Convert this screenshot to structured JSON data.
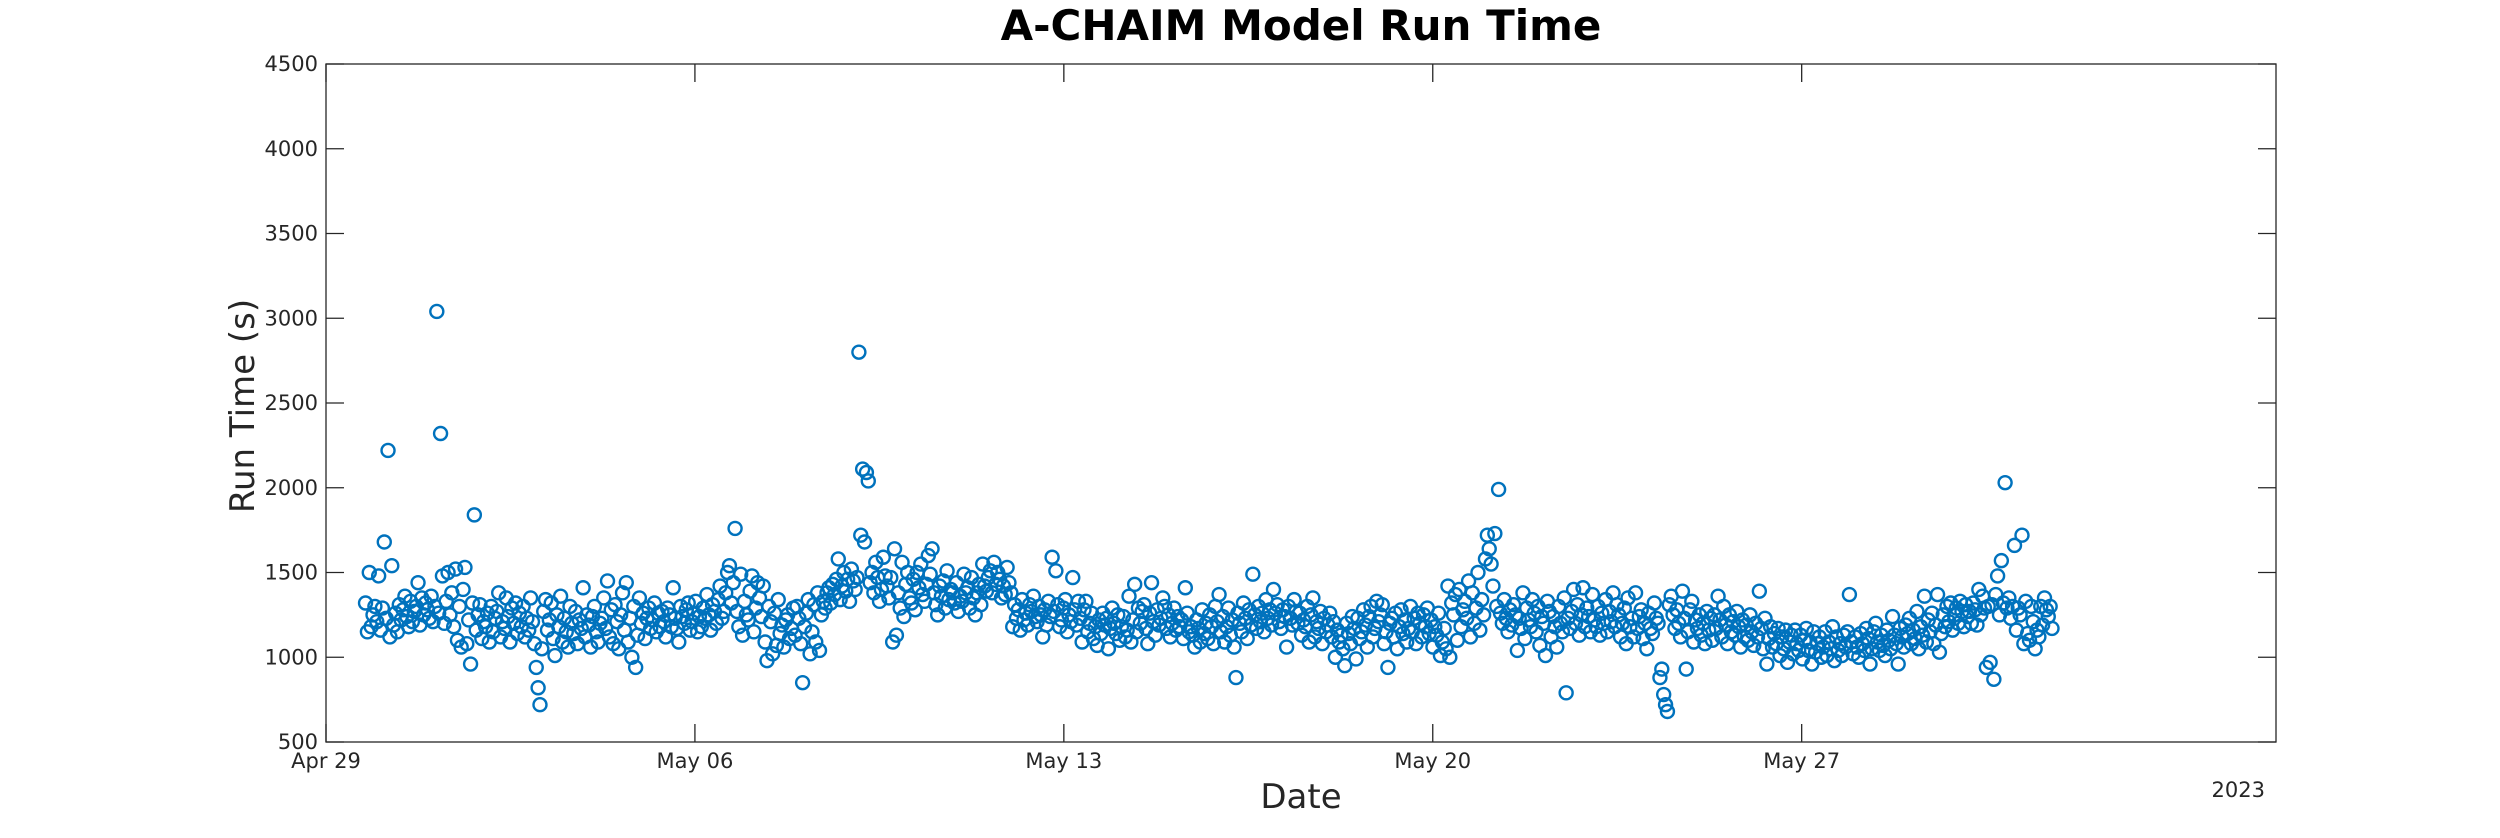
{
  "chart_data": {
    "type": "scatter",
    "title": "A-CHAIM Model Run Time",
    "xlabel": "Date",
    "ylabel": "Run Time (s)",
    "x_axis_type": "date",
    "x_year_label": "2023",
    "xlim": [
      "2023-04-29",
      "2023-06-05"
    ],
    "ylim": [
      500,
      4500
    ],
    "x_ticks": [
      {
        "date": "2023-04-29",
        "label": "Apr 29"
      },
      {
        "date": "2023-05-06",
        "label": "May 06"
      },
      {
        "date": "2023-05-13",
        "label": "May 13"
      },
      {
        "date": "2023-05-20",
        "label": "May 20"
      },
      {
        "date": "2023-05-27",
        "label": "May 27"
      }
    ],
    "y_ticks": [
      500,
      1000,
      1500,
      2000,
      2500,
      3000,
      3500,
      4000,
      4500
    ],
    "grid": false,
    "marker": "open-circle",
    "marker_color": "#0072BD",
    "series": [
      {
        "x_start": "2023-04-29T18:00",
        "x_end": "2023-05-31T18:00",
        "sampling": "uniform",
        "values": [
          1320,
          1150,
          1500,
          1180,
          1250,
          1300,
          1210,
          1480,
          1160,
          1290,
          1680,
          1230,
          2220,
          1120,
          1540,
          1190,
          1260,
          1150,
          1310,
          1220,
          1280,
          1360,
          1240,
          1180,
          1330,
          1210,
          1270,
          1300,
          1440,
          1190,
          1350,
          1250,
          1320,
          1280,
          1230,
          1360,
          1210,
          1300,
          3040,
          1260,
          2320,
          1480,
          1200,
          1330,
          1500,
          1250,
          1380,
          1180,
          1520,
          1100,
          1300,
          1060,
          1400,
          1530,
          1080,
          1220,
          960,
          1320,
          1840,
          1160,
          1250,
          1310,
          1110,
          1210,
          1180,
          1260,
          1090,
          1300,
          1150,
          1230,
          1270,
          1380,
          1120,
          1210,
          1170,
          1350,
          1240,
          1090,
          1290,
          1200,
          1320,
          1140,
          1260,
          1180,
          1300,
          1120,
          1230,
          1160,
          1350,
          1210,
          1080,
          940,
          820,
          720,
          1050,
          1270,
          1340,
          1160,
          1220,
          1320,
          1110,
          1010,
          1250,
          1180,
          1360,
          1090,
          1230,
          1150,
          1060,
          1300,
          1200,
          1140,
          1270,
          1080,
          1220,
          1170,
          1410,
          1120,
          1250,
          1190,
          1060,
          1240,
          1300,
          1150,
          1090,
          1200,
          1230,
          1350,
          1170,
          1450,
          1120,
          1280,
          1080,
          1310,
          1210,
          1050,
          1250,
          1380,
          1160,
          1440,
          1090,
          1230,
          1000,
          1300,
          940,
          1130,
          1350,
          1200,
          1260,
          1110,
          1230,
          1290,
          1170,
          1220,
          1320,
          1150,
          1260,
          1180,
          1270,
          1210,
          1120,
          1290,
          1250,
          1180,
          1410,
          1230,
          1170,
          1090,
          1300,
          1240,
          1200,
          1280,
          1320,
          1160,
          1210,
          1260,
          1330,
          1150,
          1240,
          1180,
          1290,
          1230,
          1370,
          1250,
          1160,
          1310,
          1270,
          1200,
          1340,
          1420,
          1230,
          1270,
          1380,
          1500,
          1540,
          1320,
          1440,
          1760,
          1270,
          1180,
          1490,
          1130,
          1330,
          1250,
          1220,
          1390,
          1480,
          1150,
          1290,
          1440,
          1350,
          1240,
          1420,
          1090,
          980,
          1300,
          1210,
          1020,
          1260,
          1070,
          1340,
          1140,
          1190,
          1060,
          1220,
          1250,
          1110,
          1170,
          1290,
          1130,
          1300,
          1230,
          1080,
          850,
          1180,
          1260,
          1340,
          1020,
          1150,
          1310,
          1090,
          1380,
          1040,
          1250,
          1330,
          1290,
          1380,
          1410,
          1320,
          1430,
          1370,
          1460,
          1580,
          1340,
          1420,
          1500,
          1390,
          1460,
          1330,
          1520,
          1450,
          1400,
          1470,
          2800,
          1720,
          2110,
          1680,
          2090,
          2040,
          1440,
          1500,
          1380,
          1560,
          1470,
          1330,
          1400,
          1590,
          1480,
          1420,
          1350,
          1470,
          1090,
          1640,
          1130,
          1380,
          1290,
          1560,
          1240,
          1430,
          1500,
          1350,
          1320,
          1460,
          1280,
          1500,
          1410,
          1550,
          1370,
          1330,
          1430,
          1600,
          1490,
          1640,
          1380,
          1310,
          1250,
          1420,
          1360,
          1450,
          1290,
          1510,
          1340,
          1400,
          1380,
          1320,
          1440,
          1270,
          1360,
          1330,
          1490,
          1380,
          1410,
          1290,
          1470,
          1350,
          1250,
          1380,
          1430,
          1310,
          1550,
          1420,
          1390,
          1470,
          1510,
          1380,
          1560,
          1430,
          1500,
          1460,
          1350,
          1420,
          1370,
          1530,
          1440,
          1380,
          1180,
          1310,
          1230,
          1280,
          1160,
          1340,
          1220,
          1260,
          1190,
          1310,
          1270,
          1360,
          1240,
          1210,
          1300,
          1250,
          1120,
          1280,
          1190,
          1330,
          1240,
          1590,
          1270,
          1510,
          1310,
          1180,
          1220,
          1290,
          1340,
          1150,
          1250,
          1210,
          1470,
          1280,
          1190,
          1330,
          1230,
          1090,
          1280,
          1330,
          1150,
          1200,
          1260,
          1110,
          1180,
          1070,
          1220,
          1140,
          1260,
          1190,
          1230,
          1050,
          1170,
          1290,
          1200,
          1140,
          1250,
          1100,
          1180,
          1240,
          1120,
          1160,
          1360,
          1090,
          1220,
          1430,
          1150,
          1290,
          1200,
          1270,
          1310,
          1170,
          1080,
          1260,
          1440,
          1210,
          1130,
          1280,
          1190,
          1230,
          1350,
          1300,
          1170,
          1250,
          1120,
          1200,
          1290,
          1160,
          1240,
          1180,
          1220,
          1110,
          1410,
          1260,
          1150,
          1180,
          1130,
          1060,
          1220,
          1170,
          1090,
          1280,
          1140,
          1200,
          1110,
          1250,
          1180,
          1080,
          1300,
          1210,
          1370,
          1150,
          1240,
          1090,
          1180,
          1290,
          1130,
          1220,
          1060,
          880,
          1260,
          1200,
          1150,
          1320,
          1230,
          1110,
          1280,
          1190,
          1490,
          1250,
          1170,
          1300,
          1210,
          1260,
          1150,
          1340,
          1230,
          1280,
          1190,
          1400,
          1260,
          1310,
          1210,
          1170,
          1280,
          1240,
          1060,
          1300,
          1230,
          1190,
          1340,
          1270,
          1200,
          1260,
          1130,
          1220,
          1180,
          1300,
          1090,
          1250,
          1350,
          1120,
          1210,
          1170,
          1270,
          1080,
          1230,
          1150,
          1190,
          1260,
          1120,
          1210,
          1000,
          1160,
          1090,
          1130,
          1050,
          950,
          1200,
          1140,
          1080,
          1240,
          1170,
          990,
          1230,
          1110,
          1150,
          1280,
          1190,
          1060,
          1240,
          1300,
          1120,
          1170,
          1330,
          1210,
          1250,
          1310,
          1080,
          1150,
          940,
          1200,
          1230,
          1120,
          1260,
          1050,
          1180,
          1280,
          1140,
          1220,
          1090,
          1170,
          1300,
          1150,
          1230,
          1080,
          1260,
          1200,
          1120,
          1250,
          1180,
          1290,
          1140,
          1220,
          1060,
          1180,
          1130,
          1260,
          1010,
          1090,
          1170,
          1050,
          1420,
          1000,
          1320,
          1250,
          1370,
          1100,
          1400,
          1180,
          1280,
          1330,
          1230,
          1450,
          1120,
          1380,
          1200,
          1290,
          1500,
          1160,
          1340,
          1250,
          1580,
          1720,
          1640,
          1550,
          1420,
          1730,
          1300,
          1990,
          1260,
          1200,
          1340,
          1230,
          1150,
          1280,
          1190,
          1310,
          1250,
          1040,
          1230,
          1170,
          1380,
          1110,
          1290,
          1220,
          1180,
          1340,
          1260,
          1150,
          1300,
          1070,
          1240,
          1200,
          1010,
          1330,
          1270,
          1120,
          1240,
          1180,
          1060,
          1300,
          1200,
          1150,
          1350,
          790,
          1230,
          1170,
          1270,
          1400,
          1200,
          1310,
          1130,
          1250,
          1410,
          1180,
          1290,
          1240,
          1150,
          1370,
          1220,
          1180,
          1300,
          1130,
          1260,
          1200,
          1340,
          1150,
          1270,
          1210,
          1380,
          1180,
          1310,
          1250,
          1120,
          1200,
          1290,
          1080,
          1350,
          1180,
          1230,
          1120,
          1380,
          1170,
          1240,
          1280,
          1110,
          1200,
          1050,
          1260,
          1170,
          1140,
          1320,
          1230,
          1200,
          880,
          930,
          780,
          720,
          680,
          1310,
          1360,
          1250,
          1170,
          1280,
          1200,
          1120,
          1390,
          1230,
          930,
          1150,
          1280,
          1330,
          1090,
          1220,
          1170,
          1250,
          1130,
          1200,
          1080,
          1270,
          1160,
          1230,
          1100,
          1250,
          1170,
          1360,
          1220,
          1120,
          1300,
          1190,
          1080,
          1250,
          1150,
          1210,
          1130,
          1270,
          1180,
          1060,
          1220,
          1120,
          1190,
          1100,
          1250,
          1150,
          1070,
          1200,
          1120,
          1390,
          1170,
          1050,
          1230,
          960,
          1110,
          1180,
          1060,
          1140,
          1080,
          1170,
          1010,
          1120,
          1050,
          1160,
          970,
          1090,
          1130,
          1020,
          1160,
          1080,
          1040,
          1130,
          990,
          1100,
          1170,
          1040,
          1090,
          960,
          1150,
          1030,
          1080,
          1120,
          1000,
          1060,
          1150,
          1010,
          1090,
          1050,
          1180,
          980,
          1120,
          1040,
          1080,
          1010,
          1130,
          1060,
          1150,
          1370,
          1090,
          1020,
          1120,
          1060,
          1000,
          1140,
          1080,
          1040,
          1170,
          1110,
          960,
          1050,
          1150,
          1200,
          1090,
          1040,
          1130,
          1070,
          1010,
          1160,
          1100,
          1050,
          1240,
          1130,
          1080,
          960,
          1170,
          1120,
          1060,
          1190,
          1140,
          1230,
          1080,
          1160,
          1110,
          1270,
          1050,
          1180,
          1130,
          1360,
          1090,
          1220,
          1150,
          1260,
          1080,
          1190,
          1370,
          1030,
          1140,
          1250,
          1180,
          1300,
          1210,
          1320,
          1160,
          1250,
          1290,
          1200,
          1330,
          1270,
          1180,
          1310,
          1240,
          1270,
          1200,
          1320,
          1280,
          1190,
          1400,
          1250,
          1360,
          1290,
          940,
          1300,
          970,
          1310,
          870,
          1370,
          1480,
          1250,
          1570,
          1320,
          2030,
          1290,
          1350,
          1230,
          1300,
          1660,
          1160,
          1290,
          1250,
          1720,
          1080,
          1330,
          1140,
          1100,
          1300,
          1210,
          1050,
          1160,
          1120,
          1300,
          1190,
          1350,
          1280,
          1240,
          1300,
          1170
        ]
      }
    ]
  }
}
